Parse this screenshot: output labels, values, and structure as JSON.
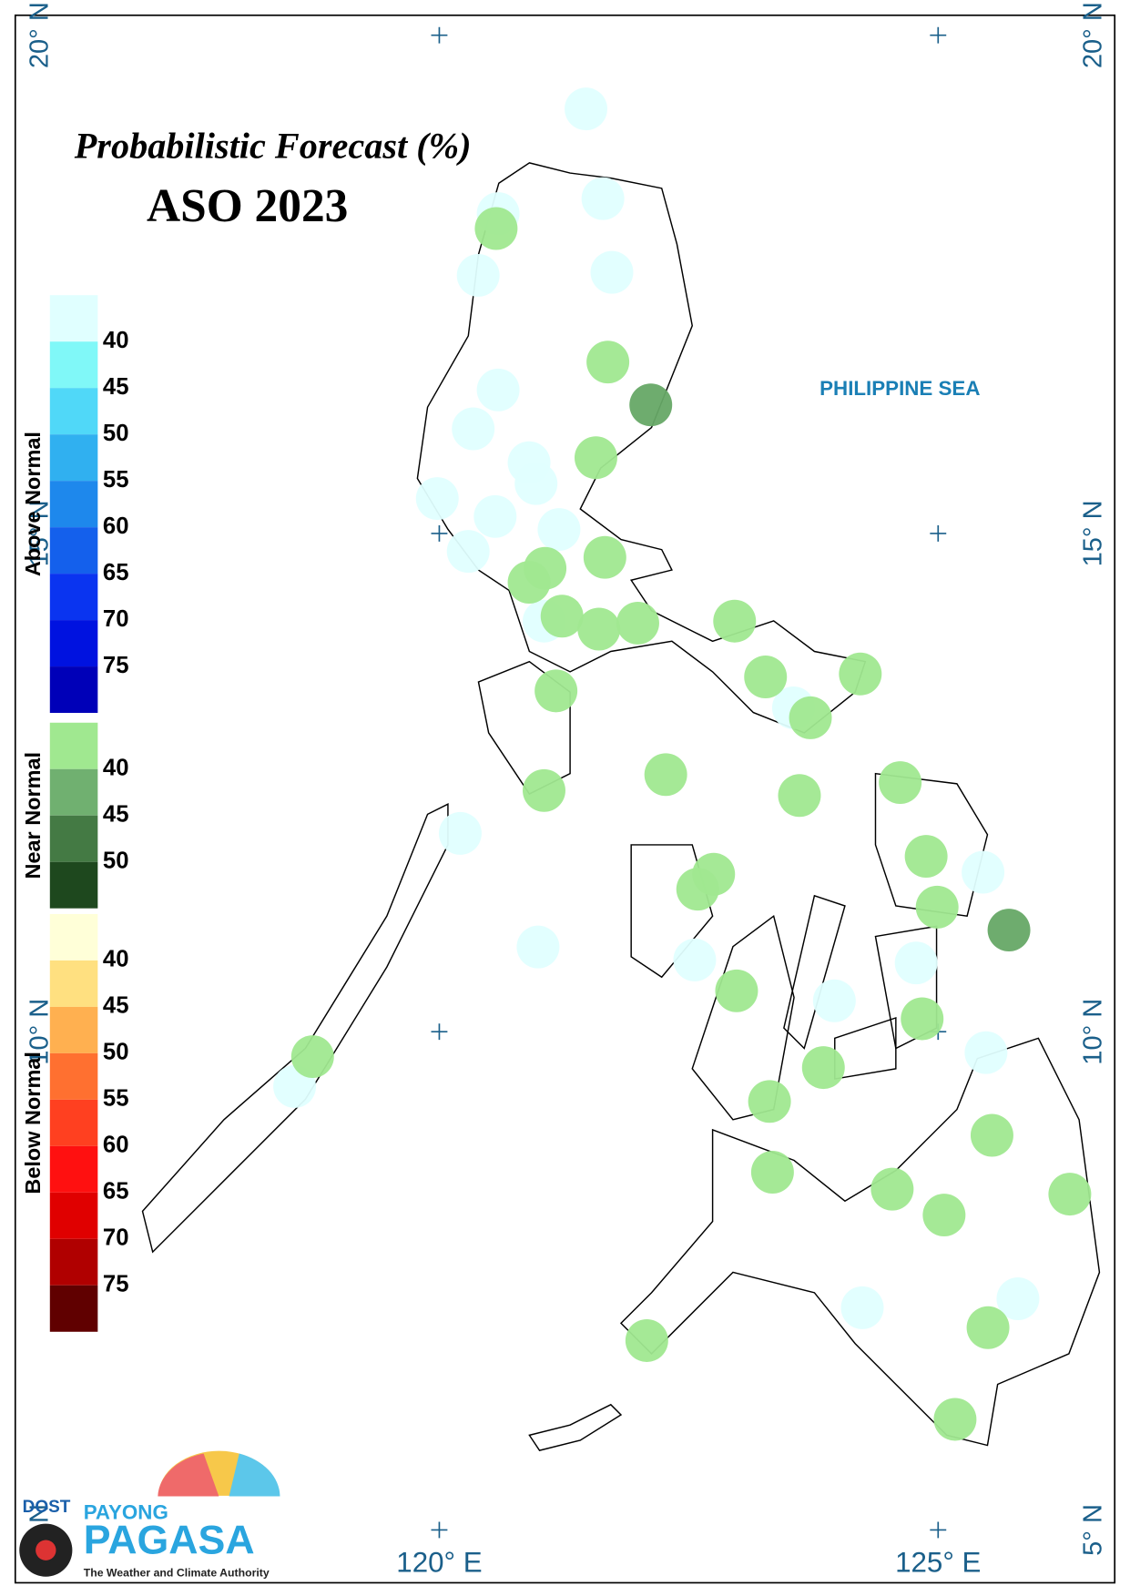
{
  "map": {
    "title": "Probabilistic Forecast (%)",
    "subtitle": "ASO 2023",
    "sea_label": "PHILIPPINE SEA",
    "xlim": [
      115.75,
      126.77
    ],
    "ylim": [
      4.47,
      20.2
    ],
    "xticks": [
      {
        "value": 120,
        "label": "120° E"
      },
      {
        "value": 125,
        "label": "125° E"
      }
    ],
    "yticks": [
      {
        "value": 5,
        "label": "5° N"
      },
      {
        "value": 10,
        "label": "10° N"
      },
      {
        "value": 15,
        "label": "15° N"
      },
      {
        "value": 20,
        "label": "20° N"
      }
    ],
    "legend": [
      {
        "title": "Above Normal",
        "colors": [
          "#e0ffff",
          "#80f8f8",
          "#50d8f8",
          "#30b0f0",
          "#1e88ec",
          "#1460ec",
          "#0a34f0",
          "#0012e0",
          "#0000b8"
        ],
        "labels": [
          40,
          45,
          50,
          55,
          60,
          65,
          70,
          75
        ]
      },
      {
        "title": "Near Normal",
        "colors": [
          "#a0e890",
          "#70b070",
          "#447a44",
          "#1e481e"
        ],
        "labels": [
          40,
          45,
          50
        ]
      },
      {
        "title": "Below Normal",
        "colors": [
          "#ffffd8",
          "#ffe080",
          "#ffb050",
          "#ff7030",
          "#ff4020",
          "#ff1010",
          "#e00000",
          "#b00000",
          "#600000"
        ],
        "labels": [
          40,
          45,
          50,
          55,
          60,
          65,
          70,
          75
        ]
      }
    ],
    "stations": [
      {
        "lon": 121.47,
        "lat": 19.26,
        "color": "#e0ffff"
      },
      {
        "lon": 121.64,
        "lat": 18.36,
        "color": "#e0ffff"
      },
      {
        "lon": 120.59,
        "lat": 18.21,
        "color": "#e0ffff"
      },
      {
        "lon": 120.39,
        "lat": 17.59,
        "color": "#e0ffff"
      },
      {
        "lon": 121.73,
        "lat": 17.62,
        "color": "#e0ffff"
      },
      {
        "lon": 120.59,
        "lat": 16.44,
        "color": "#e0ffff"
      },
      {
        "lon": 120.34,
        "lat": 16.05,
        "color": "#e0ffff"
      },
      {
        "lon": 120.9,
        "lat": 15.71,
        "color": "#e0ffff"
      },
      {
        "lon": 120.97,
        "lat": 15.5,
        "color": "#e0ffff"
      },
      {
        "lon": 119.98,
        "lat": 15.35,
        "color": "#e0ffff"
      },
      {
        "lon": 120.56,
        "lat": 15.17,
        "color": "#e0ffff"
      },
      {
        "lon": 121.2,
        "lat": 15.04,
        "color": "#e0ffff"
      },
      {
        "lon": 120.29,
        "lat": 14.82,
        "color": "#e0ffff"
      },
      {
        "lon": 121.05,
        "lat": 14.12,
        "color": "#e0ffff"
      },
      {
        "lon": 123.55,
        "lat": 13.25,
        "color": "#e0ffff"
      },
      {
        "lon": 120.21,
        "lat": 11.99,
        "color": "#e0ffff"
      },
      {
        "lon": 120.99,
        "lat": 10.85,
        "color": "#e0ffff"
      },
      {
        "lon": 122.56,
        "lat": 10.72,
        "color": "#e0ffff"
      },
      {
        "lon": 123.96,
        "lat": 10.31,
        "color": "#e0ffff"
      },
      {
        "lon": 124.78,
        "lat": 10.69,
        "color": "#e0ffff"
      },
      {
        "lon": 125.45,
        "lat": 11.6,
        "color": "#e0ffff"
      },
      {
        "lon": 125.48,
        "lat": 9.79,
        "color": "#e0ffff"
      },
      {
        "lon": 118.55,
        "lat": 9.45,
        "color": "#e0ffff"
      },
      {
        "lon": 124.24,
        "lat": 7.23,
        "color": "#e0ffff"
      },
      {
        "lon": 125.8,
        "lat": 7.32,
        "color": "#e0ffff"
      },
      {
        "lon": 120.57,
        "lat": 18.06,
        "color": "#a0e890"
      },
      {
        "lon": 121.69,
        "lat": 16.72,
        "color": "#a0e890"
      },
      {
        "lon": 121.57,
        "lat": 15.76,
        "color": "#a0e890"
      },
      {
        "lon": 121.66,
        "lat": 14.76,
        "color": "#a0e890"
      },
      {
        "lon": 121.06,
        "lat": 14.65,
        "color": "#a0e890"
      },
      {
        "lon": 120.9,
        "lat": 14.51,
        "color": "#a0e890"
      },
      {
        "lon": 121.23,
        "lat": 14.17,
        "color": "#a0e890"
      },
      {
        "lon": 121.6,
        "lat": 14.04,
        "color": "#a0e890"
      },
      {
        "lon": 121.99,
        "lat": 14.1,
        "color": "#a0e890"
      },
      {
        "lon": 122.96,
        "lat": 14.12,
        "color": "#a0e890"
      },
      {
        "lon": 123.27,
        "lat": 13.56,
        "color": "#a0e890"
      },
      {
        "lon": 124.22,
        "lat": 13.59,
        "color": "#a0e890"
      },
      {
        "lon": 123.72,
        "lat": 13.15,
        "color": "#a0e890"
      },
      {
        "lon": 121.17,
        "lat": 13.42,
        "color": "#a0e890"
      },
      {
        "lon": 122.27,
        "lat": 12.58,
        "color": "#a0e890"
      },
      {
        "lon": 121.05,
        "lat": 12.42,
        "color": "#a0e890"
      },
      {
        "lon": 123.61,
        "lat": 12.37,
        "color": "#a0e890"
      },
      {
        "lon": 124.62,
        "lat": 12.5,
        "color": "#a0e890"
      },
      {
        "lon": 122.75,
        "lat": 11.58,
        "color": "#a0e890"
      },
      {
        "lon": 122.59,
        "lat": 11.43,
        "color": "#a0e890"
      },
      {
        "lon": 124.88,
        "lat": 11.76,
        "color": "#a0e890"
      },
      {
        "lon": 124.99,
        "lat": 11.25,
        "color": "#a0e890"
      },
      {
        "lon": 122.98,
        "lat": 10.41,
        "color": "#a0e890"
      },
      {
        "lon": 124.84,
        "lat": 10.13,
        "color": "#a0e890"
      },
      {
        "lon": 123.85,
        "lat": 9.64,
        "color": "#a0e890"
      },
      {
        "lon": 118.73,
        "lat": 9.75,
        "color": "#a0e890"
      },
      {
        "lon": 123.31,
        "lat": 9.3,
        "color": "#a0e890"
      },
      {
        "lon": 125.54,
        "lat": 8.96,
        "color": "#a0e890"
      },
      {
        "lon": 123.34,
        "lat": 8.59,
        "color": "#a0e890"
      },
      {
        "lon": 124.54,
        "lat": 8.42,
        "color": "#a0e890"
      },
      {
        "lon": 125.06,
        "lat": 8.16,
        "color": "#a0e890"
      },
      {
        "lon": 126.32,
        "lat": 8.37,
        "color": "#a0e890"
      },
      {
        "lon": 125.5,
        "lat": 7.03,
        "color": "#a0e890"
      },
      {
        "lon": 122.08,
        "lat": 6.9,
        "color": "#a0e890"
      },
      {
        "lon": 125.17,
        "lat": 6.11,
        "color": "#a0e890"
      },
      {
        "lon": 122.12,
        "lat": 16.29,
        "color": "#66a866"
      },
      {
        "lon": 125.71,
        "lat": 11.02,
        "color": "#66a866"
      }
    ],
    "logo": {
      "agency": "DOST",
      "brand_top": "PAYONG",
      "brand": "PAGASA",
      "tagline": "The Weather and Climate Authority"
    }
  }
}
